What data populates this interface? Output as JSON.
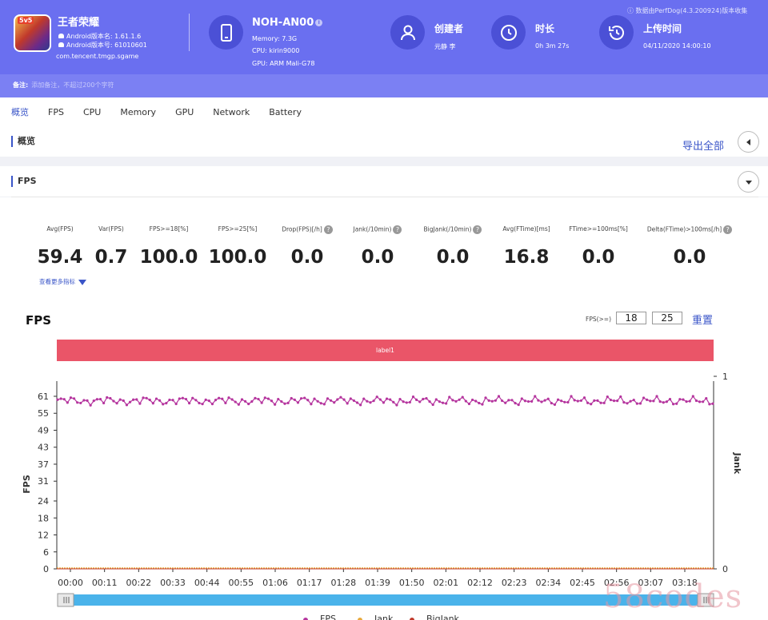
{
  "header": {
    "app": {
      "name": "王者荣耀",
      "icon_badge": "5v5",
      "version_name": "Android版本名: 1.61.1.6",
      "version_code": "Android版本号: 61010601",
      "package": "com.tencent.tmgp.sgame"
    },
    "device": {
      "name": "NOH-AN00",
      "info_glyph": "i",
      "memory": "Memory: 7.3G",
      "cpu": "CPU: kirin9000",
      "gpu": "GPU: ARM Mali-G78"
    },
    "creator": {
      "label": "创建者",
      "value": "元静 李"
    },
    "duration": {
      "label": "时长",
      "value": "0h 3m 27s"
    },
    "upload": {
      "label": "上传时间",
      "value": "04/11/2020 14:00:10"
    },
    "source": "ⓘ 数据由PerfDog(4.3.200924)版本收集",
    "note_label": "备注:",
    "note_placeholder": "添加备注，不超过200个字符",
    "accent": "#6a6ff0"
  },
  "tabs": [
    {
      "label": "概览",
      "active": true
    },
    {
      "label": "FPS",
      "active": false
    },
    {
      "label": "CPU",
      "active": false
    },
    {
      "label": "Memory",
      "active": false
    },
    {
      "label": "GPU",
      "active": false
    },
    {
      "label": "Network",
      "active": false
    },
    {
      "label": "Battery",
      "active": false
    }
  ],
  "overview": {
    "title": "概览",
    "export_label": "导出全部"
  },
  "fps_section": {
    "title": "FPS",
    "metrics": [
      {
        "label": "Avg(FPS)",
        "value": "59.4",
        "help": false
      },
      {
        "label": "Var(FPS)",
        "value": "0.7",
        "help": false
      },
      {
        "label": "FPS>=18[%]",
        "value": "100.0",
        "help": false
      },
      {
        "label": "FPS>=25[%]",
        "value": "100.0",
        "help": false
      },
      {
        "label": "Drop(FPS)[/h]",
        "value": "0.0",
        "help": true
      },
      {
        "label": "Jank(/10min)",
        "value": "0.0",
        "help": true
      },
      {
        "label": "BigJank(/10min)",
        "value": "0.0",
        "help": true
      },
      {
        "label": "Avg(FTime)[ms]",
        "value": "16.8",
        "help": false
      },
      {
        "label": "FTime>=100ms[%]",
        "value": "0.0",
        "help": false
      },
      {
        "label": "Delta(FTime)>100ms[/h]",
        "value": "0.0",
        "help": true
      }
    ],
    "help_glyph": "?",
    "more_label": "查看更多指标",
    "chart_title": "FPS",
    "threshold_label": "FPS(>=)",
    "threshold_values": [
      "18",
      "25"
    ],
    "reset_label": "重置",
    "band_label": "label1"
  },
  "chart_data": {
    "type": "line",
    "title": "FPS",
    "ylabel": "FPS",
    "y2label": "Jank",
    "y_ticks": [
      0,
      6,
      12,
      18,
      24,
      31,
      37,
      43,
      49,
      55,
      61
    ],
    "y2_ticks": [
      0,
      1
    ],
    "ylim": [
      0,
      61
    ],
    "y2lim": [
      0,
      1
    ],
    "x_ticks": [
      "00:00",
      "00:11",
      "00:22",
      "00:33",
      "00:44",
      "00:55",
      "01:06",
      "01:17",
      "01:28",
      "01:39",
      "01:50",
      "02:01",
      "02:12",
      "02:23",
      "02:34",
      "02:45",
      "02:56",
      "03:07",
      "03:18"
    ],
    "xlim_seconds": [
      0,
      207
    ],
    "legend": [
      "FPS",
      "Jank",
      "BigJank"
    ],
    "legend_position": "bottom",
    "series": [
      {
        "name": "FPS",
        "color": "#b5359e",
        "mean": 59.4,
        "min": 57,
        "max": 61
      },
      {
        "name": "Jank",
        "color": "#e8a93b",
        "value": 0
      },
      {
        "name": "BigJank",
        "color": "#c0392b",
        "value": 0
      }
    ],
    "grid": false
  },
  "watermark": "58codes",
  "colors": {
    "link": "#3a55c8",
    "band": "#ea5568",
    "scrollbar": "#4ab3ea"
  }
}
